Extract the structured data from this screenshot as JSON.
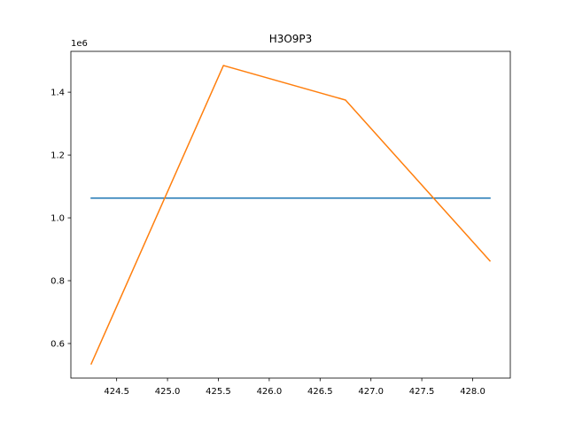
{
  "chart_data": {
    "type": "line",
    "title": "H3O9P3",
    "xlabel": "",
    "ylabel": "",
    "y_offset_label": "1e6",
    "xlim": [
      424.05,
      428.37
    ],
    "ylim": [
      490000,
      1530000
    ],
    "grid": false,
    "x_ticks": [
      {
        "value": 424.5,
        "label": "424.5"
      },
      {
        "value": 425.0,
        "label": "425.0"
      },
      {
        "value": 425.5,
        "label": "425.5"
      },
      {
        "value": 426.0,
        "label": "426.0"
      },
      {
        "value": 426.5,
        "label": "426.5"
      },
      {
        "value": 427.0,
        "label": "427.0"
      },
      {
        "value": 427.5,
        "label": "427.5"
      },
      {
        "value": 428.0,
        "label": "428.0"
      }
    ],
    "y_ticks": [
      {
        "value": 600000,
        "label": "0.6"
      },
      {
        "value": 800000,
        "label": "0.8"
      },
      {
        "value": 1000000,
        "label": "1.0"
      },
      {
        "value": 1200000,
        "label": "1.2"
      },
      {
        "value": 1400000,
        "label": "1.4"
      }
    ],
    "series": [
      {
        "color": "#1f77b4",
        "x": [
          424.25,
          428.17
        ],
        "y": [
          1063000,
          1063000
        ]
      },
      {
        "color": "#ff7f0e",
        "x": [
          424.25,
          425.55,
          426.75,
          428.17
        ],
        "y": [
          535000,
          1485000,
          1375000,
          863000
        ]
      }
    ]
  }
}
